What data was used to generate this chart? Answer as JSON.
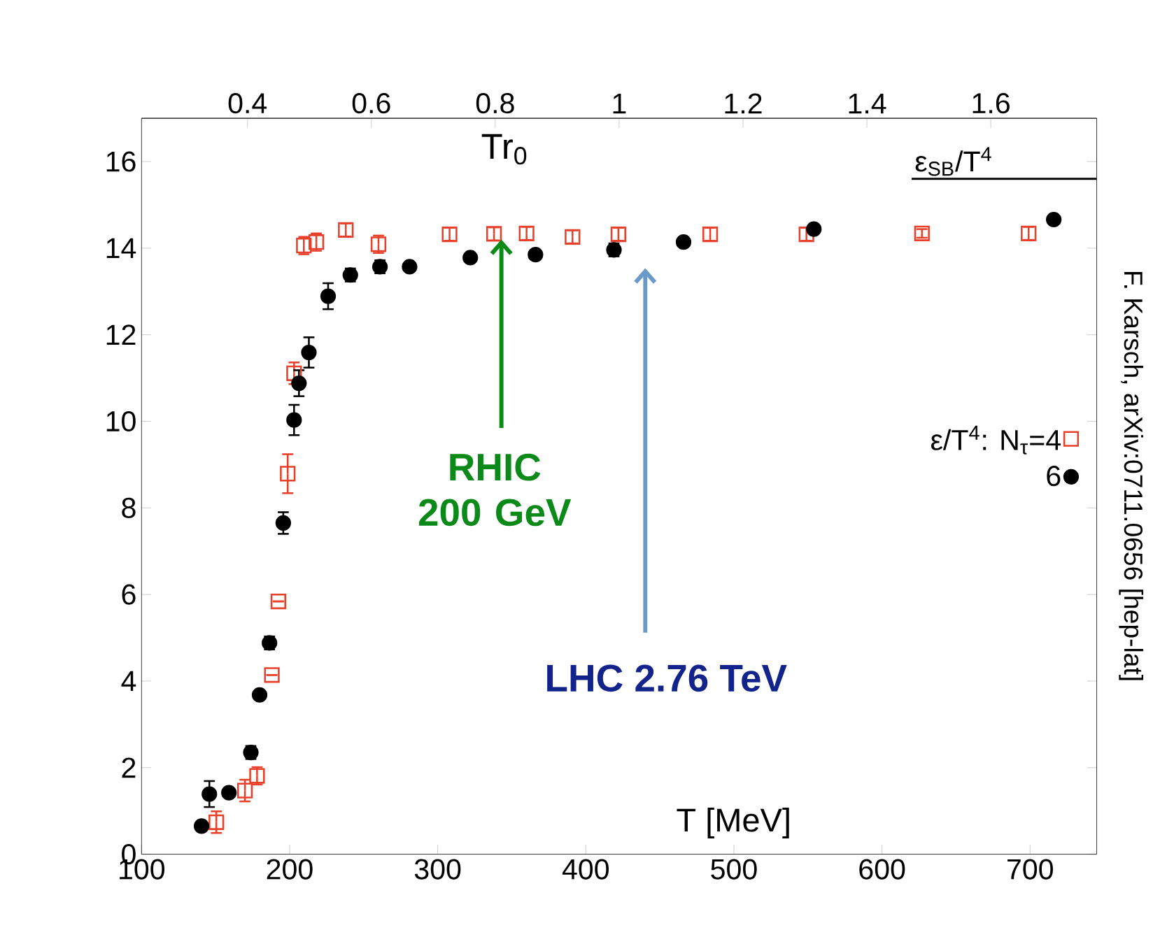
{
  "chart_data": {
    "type": "scatter",
    "xlabel": "T [MeV]",
    "x2label": "Tr$_{0}$",
    "xlim": [
      100,
      745
    ],
    "ylim": [
      0,
      17
    ],
    "xticks": [
      100,
      200,
      300,
      400,
      500,
      600,
      700
    ],
    "yticks": [
      0,
      2,
      4,
      6,
      8,
      10,
      12,
      14,
      16
    ],
    "x2lim": [
      0.229,
      1.771
    ],
    "x2ticks": [
      0.4,
      0.6,
      0.8,
      1,
      1.2,
      1.4,
      1.6
    ],
    "legend": "right",
    "series": [
      {
        "name": "ε/T$^{4}$: N$_{τ}$=4",
        "color": "#e8402a",
        "marker": "square",
        "x": [
          150.5,
          169.8,
          178,
          188,
          192.4,
          198.7,
          203,
          209.6,
          218,
          237.9,
          260,
          308,
          338,
          360,
          391,
          422,
          484,
          549,
          627,
          699
        ],
        "values": [
          0.74,
          1.47,
          1.81,
          4.14,
          5.84,
          8.79,
          11.11,
          14.06,
          14.14,
          14.42,
          14.09,
          14.32,
          14.33,
          14.34,
          14.26,
          14.32,
          14.32,
          14.32,
          14.34,
          14.34
        ],
        "errors": [
          0.25,
          0.25,
          0.2,
          null,
          null,
          0.45,
          0.25,
          0.2,
          0.2,
          0.15,
          0.2,
          0.15,
          0.15,
          0.15,
          0.15,
          0.15,
          0.15,
          0.15,
          0.1,
          0.15
        ]
      },
      {
        "name": "6",
        "color": "#000000",
        "marker": "circle",
        "x": [
          140.5,
          145.8,
          159,
          173.8,
          179.7,
          186.4,
          195.7,
          203,
          206.3,
          213,
          226,
          241,
          261,
          281,
          322,
          366,
          419,
          466,
          554,
          716
        ],
        "values": [
          0.65,
          1.39,
          1.42,
          2.35,
          3.68,
          4.88,
          7.65,
          10.03,
          10.88,
          11.59,
          12.89,
          13.38,
          13.57,
          13.57,
          13.78,
          13.85,
          13.96,
          14.14,
          14.44,
          14.66
        ],
        "errors": [
          null,
          0.3,
          null,
          0.15,
          null,
          0.15,
          0.25,
          0.35,
          0.3,
          0.35,
          0.3,
          0.15,
          0.15,
          null,
          null,
          null,
          0.15,
          null,
          null,
          null
        ]
      },
      {
        "name": "ε$_{SB}$/T$^{4}$",
        "type": "line",
        "color": "#000000",
        "marker": "none",
        "x": [
          620,
          745
        ],
        "values": [
          15.6,
          15.6
        ]
      }
    ],
    "annotations": [
      {
        "text": "RHIC 200 GeV",
        "x": 343,
        "y": 14.2
      },
      "LHC 2.76 TeV",
      "F. Karsch,  arXiv:0711.0656 [hep-lat]"
    ]
  }
}
